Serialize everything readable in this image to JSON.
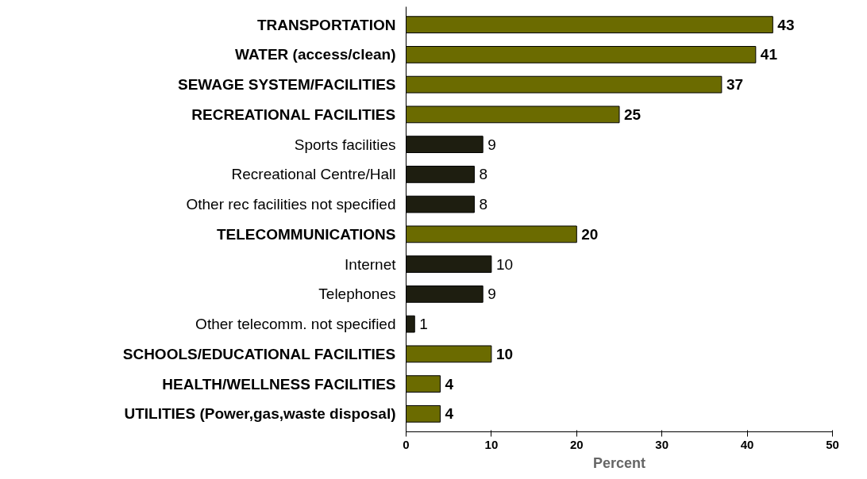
{
  "chart_data": {
    "type": "bar",
    "orientation": "horizontal",
    "stacked": true,
    "categories": [
      "TRANSPORTATION",
      "WATER (access/clean)",
      "SEWAGE SYSTEM/FACILITIES",
      "RECREATIONAL FACILITIES",
      "Sports facilities",
      "Recreational Centre/Hall",
      "Other rec facilities not specified",
      "TELECOMMUNICATIONS",
      "Internet",
      "Telephones",
      "Other telecomm. not specified",
      "SCHOOLS/EDUCATIONAL FACILITIES",
      "HEALTH/WELLNESS FACILITIES",
      "UTILITIES (Power,gas,waste disposal)"
    ],
    "series": [
      {
        "color": "#6b6b00",
        "values": [
          43,
          41,
          37,
          25,
          null,
          null,
          null,
          20,
          null,
          null,
          null,
          10,
          4,
          4
        ]
      },
      {
        "color": "#1e1e10",
        "values": [
          null,
          null,
          null,
          null,
          9,
          8,
          8,
          null,
          10,
          9,
          1,
          null,
          null,
          null
        ]
      }
    ],
    "xlabel": "Percent",
    "xlim": [
      0,
      50
    ],
    "xticks": [
      0,
      10,
      20,
      30,
      40,
      50
    ],
    "grid": false,
    "data_labels": true
  }
}
